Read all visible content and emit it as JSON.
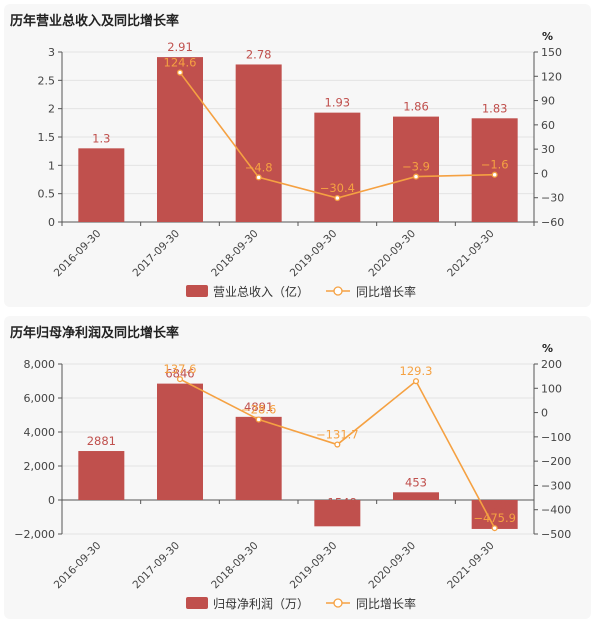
{
  "colors": {
    "bar": "#c0504d",
    "line": "#f5a142",
    "label": "#c0504d",
    "lineLabel": "#f5a142",
    "axis": "#555555",
    "grid": "#e3e3e3",
    "panel": "#f7f7f7"
  },
  "chart_data": [
    {
      "type": "bar",
      "title": "历年营业总收入及同比增长率",
      "categories": [
        "2016-09-30",
        "2017-09-30",
        "2018-09-30",
        "2019-09-30",
        "2020-09-30",
        "2021-09-30"
      ],
      "series": [
        {
          "name": "营业总收入（亿）",
          "type": "bar",
          "axis": "left",
          "values": [
            1.3,
            2.91,
            2.78,
            1.93,
            1.86,
            1.83
          ],
          "labels": [
            "1.3",
            "2.91",
            "2.78",
            "1.93",
            "1.86",
            "1.83"
          ]
        },
        {
          "name": "同比增长率",
          "type": "line",
          "axis": "right",
          "values": [
            null,
            124.6,
            -4.8,
            -30.4,
            -3.9,
            -1.6
          ],
          "labels": [
            "",
            "124.6",
            "−4.8",
            "−30.4",
            "−3.9",
            "−1.6"
          ]
        }
      ],
      "yleft": {
        "ticks": [
          0,
          0.5,
          1,
          1.5,
          2,
          2.5,
          3
        ],
        "tick_labels": [
          "0",
          "0.5",
          "1",
          "1.5",
          "2",
          "2.5",
          "3"
        ],
        "ylim": [
          0,
          3
        ]
      },
      "yright": {
        "label": "%",
        "ticks": [
          -60,
          -30,
          0,
          30,
          60,
          90,
          120,
          150
        ],
        "tick_labels": [
          "−60",
          "−30",
          "0",
          "30",
          "60",
          "90",
          "120",
          "150"
        ],
        "ylim": [
          -60,
          150
        ]
      },
      "grid": true,
      "legend": "bottom-center"
    },
    {
      "type": "bar",
      "title": "历年归母净利润及同比增长率",
      "categories": [
        "2016-09-30",
        "2017-09-30",
        "2018-09-30",
        "2019-09-30",
        "2020-09-30",
        "2021-09-30"
      ],
      "series": [
        {
          "name": "归母净利润（万）",
          "type": "bar",
          "axis": "left",
          "values": [
            2881,
            6846,
            4891,
            -1548,
            453,
            -1703
          ],
          "labels": [
            "2881",
            "6846",
            "4891",
            "−1548",
            "453",
            "−1703"
          ]
        },
        {
          "name": "同比增长率",
          "type": "line",
          "axis": "right",
          "values": [
            null,
            137.6,
            -28.6,
            -131.7,
            129.3,
            -475.9
          ],
          "labels": [
            "",
            "137.6",
            "−28.6",
            "−131.7",
            "129.3",
            "−475.9"
          ]
        }
      ],
      "yleft": {
        "ticks": [
          -2000,
          0,
          2000,
          4000,
          6000,
          8000
        ],
        "tick_labels": [
          "−2,000",
          "0",
          "2,000",
          "4,000",
          "6,000",
          "8,000"
        ],
        "ylim": [
          -2000,
          8000
        ]
      },
      "yright": {
        "label": "%",
        "ticks": [
          -500,
          -400,
          -300,
          -200,
          -100,
          0,
          100,
          200
        ],
        "tick_labels": [
          "−500",
          "−400",
          "−300",
          "−200",
          "−100",
          "0",
          "100",
          "200"
        ],
        "ylim": [
          -500,
          200
        ]
      },
      "grid": true,
      "legend": "bottom-center"
    }
  ]
}
